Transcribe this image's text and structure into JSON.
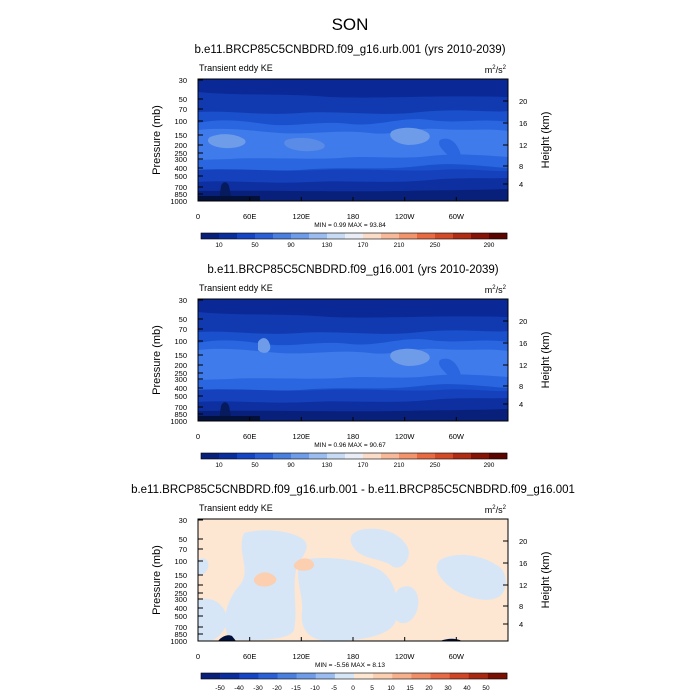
{
  "figure": {
    "title": "SON"
  },
  "chart_data": [
    {
      "type": "heatmap",
      "title": "b.e11.BRCP85C5CNBDRD.f09_g16.urb.001 (yrs 2010-2039)",
      "left_label": "Transient eddy KE",
      "units": {
        "base": "m",
        "sup1": "2",
        "mid": "/s",
        "sup2": "2"
      },
      "ylabel": "Pressure (mb)",
      "ylabel_right": "Height (km)",
      "pressure_ticks": [
        "30",
        "50",
        "70",
        "100",
        "150",
        "200",
        "250",
        "300",
        "400",
        "500",
        "700",
        "850",
        "1000"
      ],
      "height_ticks": [
        "20",
        "16",
        "12",
        "8",
        "4"
      ],
      "lon_ticks": [
        "0",
        "60E",
        "120E",
        "180",
        "120W",
        "60W"
      ],
      "stats": "MIN =   0.99  MAX =  93.84",
      "colorbar_labels": [
        "10",
        "50",
        "90",
        "130",
        "170",
        "210",
        "250",
        "290"
      ],
      "colorbar_colors": [
        "#08207a",
        "#0a2d9e",
        "#1545c4",
        "#2a5fd6",
        "#4a7fe0",
        "#6f9ce8",
        "#9bbcf0",
        "#c7dbf5",
        "#e9eef6",
        "#fbdcc8",
        "#f7b99a",
        "#f2936c",
        "#e86a43",
        "#d24a28",
        "#b02c14",
        "#861306",
        "#5a0500"
      ],
      "ylim": [
        "1000",
        "30"
      ],
      "xlim": [
        "0",
        "360"
      ]
    },
    {
      "type": "heatmap",
      "title": "b.e11.BRCP85C5CNBDRD.f09_g16.001 (yrs 2010-2039)",
      "left_label": "Transient eddy KE",
      "units": {
        "base": "m",
        "sup1": "2",
        "mid": "/s",
        "sup2": "2"
      },
      "ylabel": "Pressure (mb)",
      "ylabel_right": "Height (km)",
      "pressure_ticks": [
        "30",
        "50",
        "70",
        "100",
        "150",
        "200",
        "250",
        "300",
        "400",
        "500",
        "700",
        "850",
        "1000"
      ],
      "height_ticks": [
        "20",
        "16",
        "12",
        "8",
        "4"
      ],
      "lon_ticks": [
        "0",
        "60E",
        "120E",
        "180",
        "120W",
        "60W"
      ],
      "stats": "MIN =   0.96  MAX =  90.67",
      "colorbar_labels": [
        "10",
        "50",
        "90",
        "130",
        "170",
        "210",
        "250",
        "290"
      ],
      "colorbar_colors": [
        "#08207a",
        "#0a2d9e",
        "#1545c4",
        "#2a5fd6",
        "#4a7fe0",
        "#6f9ce8",
        "#9bbcf0",
        "#c7dbf5",
        "#e9eef6",
        "#fbdcc8",
        "#f7b99a",
        "#f2936c",
        "#e86a43",
        "#d24a28",
        "#b02c14",
        "#861306",
        "#5a0500"
      ],
      "ylim": [
        "1000",
        "30"
      ],
      "xlim": [
        "0",
        "360"
      ]
    },
    {
      "type": "heatmap",
      "title": "b.e11.BRCP85C5CNBDRD.f09_g16.urb.001 - b.e11.BRCP85C5CNBDRD.f09_g16.001",
      "left_label": "Transient eddy KE",
      "units": {
        "base": "m",
        "sup1": "2",
        "mid": "/s",
        "sup2": "2"
      },
      "ylabel": "Pressure (mb)",
      "ylabel_right": "Height (km)",
      "pressure_ticks": [
        "30",
        "50",
        "70",
        "100",
        "150",
        "200",
        "250",
        "300",
        "400",
        "500",
        "700",
        "850",
        "1000"
      ],
      "height_ticks": [
        "20",
        "16",
        "12",
        "8",
        "4"
      ],
      "lon_ticks": [
        "0",
        "60E",
        "120E",
        "180",
        "120W",
        "60W"
      ],
      "stats": "MIN =  -5.56  MAX =   8.13",
      "colorbar_labels": [
        "-50",
        "-40",
        "-30",
        "-20",
        "-15",
        "-10",
        "-5",
        "0",
        "5",
        "10",
        "15",
        "20",
        "30",
        "40",
        "50"
      ],
      "colorbar_colors": [
        "#08207a",
        "#0a2d9e",
        "#1545c4",
        "#2a5fd6",
        "#4a7fe0",
        "#6f9ce8",
        "#9bbcf0",
        "#d6e6f7",
        "#fde6d2",
        "#fbcfb0",
        "#f7b08c",
        "#f08f67",
        "#e66a45",
        "#cf4526",
        "#a92812",
        "#7a1004"
      ],
      "ylim": [
        "1000",
        "30"
      ],
      "xlim": [
        "0",
        "360"
      ]
    }
  ]
}
